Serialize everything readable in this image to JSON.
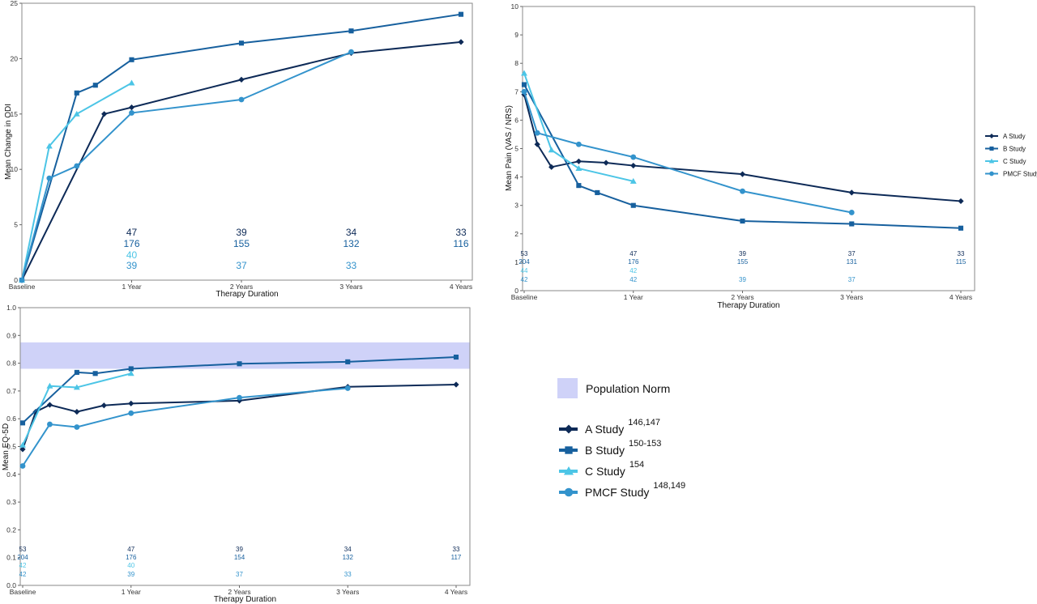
{
  "colors": {
    "A": "#0d2a57",
    "B": "#17609e",
    "C": "#4cc5e6",
    "PMCF": "#3393cc",
    "norm": "#cfd2f8"
  },
  "legend_small": [
    {
      "label": "A Study",
      "key": "A",
      "marker": "diamond"
    },
    {
      "label": "B Study",
      "key": "B",
      "marker": "square"
    },
    {
      "label": "C Study",
      "key": "C",
      "marker": "triangle"
    },
    {
      "label": "PMCF Study",
      "key": "PMCF",
      "marker": "circle"
    }
  ],
  "legend_big": {
    "norm_label": "Population Norm",
    "items": [
      {
        "label": "A Study",
        "sup": "146,147",
        "key": "A",
        "marker": "diamond"
      },
      {
        "label": "B Study",
        "sup": "150-153",
        "key": "B",
        "marker": "square"
      },
      {
        "label": "C Study",
        "sup": "154",
        "key": "C",
        "marker": "triangle"
      },
      {
        "label": "PMCF Study",
        "sup": "148,149",
        "key": "PMCF",
        "marker": "circle"
      }
    ]
  },
  "chart_data": [
    {
      "id": "odi",
      "type": "line",
      "xlabel": "Therapy Duration",
      "ylabel": "Mean Change in ODI",
      "xlim": [
        0,
        4
      ],
      "ylim": [
        0,
        25
      ],
      "yticks": [
        0,
        5,
        10,
        15,
        20,
        25
      ],
      "xticks": [
        0,
        1,
        2,
        3,
        4
      ],
      "xtick_labels": [
        "Baseline",
        "1 Year",
        "2 Years",
        "3 Years",
        "4 Years"
      ],
      "series": [
        {
          "key": "A",
          "name": "A Study",
          "marker": "diamond",
          "x": [
            0,
            0.75,
            1,
            2,
            3,
            4
          ],
          "y": [
            0,
            15,
            15.6,
            18.1,
            20.5,
            21.5
          ]
        },
        {
          "key": "B",
          "name": "B Study",
          "marker": "square",
          "x": [
            0,
            0.5,
            0.67,
            1,
            2,
            3,
            4
          ],
          "y": [
            0,
            16.9,
            17.6,
            19.9,
            21.4,
            22.5,
            24
          ]
        },
        {
          "key": "C",
          "name": "C Study",
          "marker": "triangle",
          "x": [
            0,
            0.25,
            0.5,
            1
          ],
          "y": [
            0,
            12.1,
            15,
            17.8
          ]
        },
        {
          "key": "PMCF",
          "name": "PMCF Study",
          "marker": "circle",
          "x": [
            0,
            0.25,
            0.5,
            1,
            2,
            3
          ],
          "y": [
            0,
            9.2,
            10.3,
            15.1,
            16.3,
            20.6
          ]
        }
      ],
      "counts": [
        {
          "key": "A",
          "x": [
            1,
            2,
            3,
            4
          ],
          "labels": [
            "47",
            "39",
            "34",
            "33"
          ]
        },
        {
          "key": "B",
          "x": [
            1,
            2,
            3,
            4
          ],
          "labels": [
            "176",
            "155",
            "132",
            "116"
          ]
        },
        {
          "key": "C",
          "x": [
            1
          ],
          "labels": [
            "40"
          ]
        },
        {
          "key": "PMCF",
          "x": [
            1,
            2,
            3
          ],
          "labels": [
            "39",
            "37",
            "33"
          ]
        }
      ]
    },
    {
      "id": "pain",
      "type": "line",
      "xlabel": "Therapy Duration",
      "ylabel": "Mean Pain (VAS / NRS)",
      "xlim": [
        0,
        4
      ],
      "ylim": [
        0,
        10
      ],
      "yticks": [
        0,
        1,
        2,
        3,
        4,
        5,
        6,
        7,
        8,
        9,
        10
      ],
      "xticks": [
        0,
        1,
        2,
        3,
        4
      ],
      "xtick_labels": [
        "Baseline",
        "1 Year",
        "2 Years",
        "3 Years",
        "4 Years"
      ],
      "series": [
        {
          "key": "A",
          "name": "A Study",
          "marker": "diamond",
          "x": [
            0,
            0.12,
            0.25,
            0.5,
            0.75,
            1,
            2,
            3,
            4
          ],
          "y": [
            6.9,
            5.15,
            4.35,
            4.55,
            4.5,
            4.4,
            4.1,
            3.45,
            3.15
          ]
        },
        {
          "key": "B",
          "name": "B Study",
          "marker": "square",
          "x": [
            0,
            0.5,
            0.67,
            1,
            2,
            3,
            4
          ],
          "y": [
            7.25,
            3.7,
            3.45,
            3,
            2.45,
            2.35,
            2.2
          ]
        },
        {
          "key": "C",
          "name": "C Study",
          "marker": "triangle",
          "x": [
            0,
            0.25,
            0.5,
            1
          ],
          "y": [
            7.65,
            4.95,
            4.3,
            3.85
          ]
        },
        {
          "key": "PMCF",
          "name": "PMCF Study",
          "marker": "circle",
          "x": [
            0,
            0.12,
            0.5,
            1,
            2,
            3
          ],
          "y": [
            7,
            5.55,
            5.15,
            4.7,
            3.5,
            2.75
          ]
        }
      ],
      "counts": [
        {
          "key": "A",
          "x": [
            0,
            1,
            2,
            3,
            4
          ],
          "labels": [
            "53",
            "47",
            "39",
            "37",
            "33"
          ]
        },
        {
          "key": "B",
          "x": [
            0,
            1,
            2,
            3,
            4
          ],
          "labels": [
            "204",
            "176",
            "155",
            "131",
            "115"
          ]
        },
        {
          "key": "C",
          "x": [
            0,
            1
          ],
          "labels": [
            "44",
            "42"
          ]
        },
        {
          "key": "PMCF",
          "x": [
            0,
            1,
            2,
            3
          ],
          "labels": [
            "42",
            "42",
            "39",
            "37"
          ]
        }
      ]
    },
    {
      "id": "eq5d",
      "type": "line",
      "xlabel": "Therapy Duration",
      "ylabel": "Mean EQ-5D",
      "xlim": [
        0,
        4
      ],
      "ylim": [
        0,
        1
      ],
      "yticks": [
        0,
        0.1,
        0.2,
        0.3,
        0.4,
        0.5,
        0.6,
        0.7,
        0.8,
        0.9,
        1
      ],
      "ytick_labels": [
        "0.0",
        "0.1",
        "0.2",
        "0.3",
        "0.4",
        "0.5",
        "0.6",
        "0.7",
        "0.8",
        "0.9",
        "1.0"
      ],
      "xticks": [
        0,
        1,
        2,
        3,
        4
      ],
      "xtick_labels": [
        "Baseline",
        "1 Year",
        "2 Years",
        "3 Years",
        "4 Years"
      ],
      "band": [
        0.78,
        0.875
      ],
      "series": [
        {
          "key": "A",
          "name": "A Study",
          "marker": "diamond",
          "x": [
            0,
            0.12,
            0.25,
            0.5,
            0.75,
            1,
            2,
            3,
            4
          ],
          "y": [
            0.49,
            0.625,
            0.65,
            0.625,
            0.648,
            0.655,
            0.665,
            0.715,
            0.723
          ]
        },
        {
          "key": "B",
          "name": "B Study",
          "marker": "square",
          "x": [
            0,
            0.5,
            0.67,
            1,
            2,
            3,
            4
          ],
          "y": [
            0.585,
            0.767,
            0.763,
            0.78,
            0.798,
            0.805,
            0.822
          ]
        },
        {
          "key": "C",
          "name": "C Study",
          "marker": "triangle",
          "x": [
            0,
            0.25,
            0.5,
            1
          ],
          "y": [
            0.505,
            0.718,
            0.713,
            0.763
          ]
        },
        {
          "key": "PMCF",
          "name": "PMCF Study",
          "marker": "circle",
          "x": [
            0,
            0.25,
            0.5,
            1,
            2,
            3
          ],
          "y": [
            0.43,
            0.58,
            0.57,
            0.62,
            0.676,
            0.71
          ]
        }
      ],
      "counts": [
        {
          "key": "A",
          "x": [
            0,
            1,
            2,
            3,
            4
          ],
          "labels": [
            "53",
            "47",
            "39",
            "34",
            "33"
          ]
        },
        {
          "key": "B",
          "x": [
            0,
            1,
            2,
            3,
            4
          ],
          "labels": [
            "204",
            "176",
            "154",
            "132",
            "117"
          ]
        },
        {
          "key": "C",
          "x": [
            0,
            1
          ],
          "labels": [
            "42",
            "40"
          ]
        },
        {
          "key": "PMCF",
          "x": [
            0,
            1,
            2,
            3
          ],
          "labels": [
            "42",
            "39",
            "37",
            "33"
          ]
        }
      ]
    }
  ]
}
